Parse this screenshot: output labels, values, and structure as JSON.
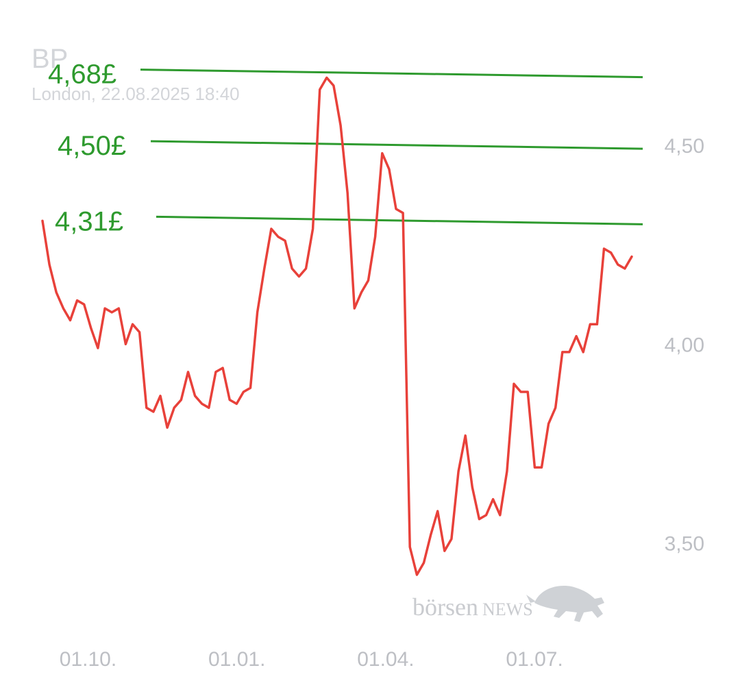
{
  "header": {
    "title": "BP",
    "subtitle": "London, 22.08.2025 18:40"
  },
  "watermark": {
    "text_left": "börsen",
    "text_right": "NEWS",
    "icon": "bull-icon"
  },
  "colors": {
    "price_line": "#e8413a",
    "level_lines": "#2e9a2e",
    "axis_text": "#bdbfc4",
    "title_text": "#d3d5d9"
  },
  "chart_data": {
    "type": "line",
    "title": "BP",
    "subtitle": "London, 22.08.2025 18:40",
    "xlabel": "",
    "ylabel": "",
    "ylim": [
      3.32,
      4.7
    ],
    "yticks": [
      3.5,
      4.0,
      4.5
    ],
    "ytick_labels": [
      "3,50",
      "4,00",
      "4,50"
    ],
    "y_axis_position": "right",
    "xtick_labels": [
      "01.10.",
      "01.01.",
      "01.04.",
      "01.07."
    ],
    "xtick_positions": [
      7.5,
      32,
      56.5,
      81
    ],
    "x_range": [
      0,
      97
    ],
    "grid": false,
    "series": [
      {
        "values": [
          4.31,
          4.2,
          4.13,
          4.09,
          4.06,
          4.11,
          4.1,
          4.04,
          3.99,
          4.09,
          4.08,
          4.09,
          4.0,
          4.05,
          4.03,
          3.84,
          3.83,
          3.87,
          3.79,
          3.84,
          3.86,
          3.93,
          3.87,
          3.85,
          3.84,
          3.93,
          3.94,
          3.86,
          3.85,
          3.88,
          3.89,
          4.08,
          4.19,
          4.29,
          4.27,
          4.26,
          4.19,
          4.17,
          4.19,
          4.29,
          4.64,
          4.67,
          4.65,
          4.55,
          4.38,
          4.09,
          4.13,
          4.16,
          4.27,
          4.48,
          4.44,
          4.34,
          4.33,
          3.49,
          3.42,
          3.45,
          3.52,
          3.58,
          3.48,
          3.51,
          3.68,
          3.77,
          3.64,
          3.56,
          3.57,
          3.61,
          3.57,
          3.68,
          3.9,
          3.88,
          3.88,
          3.69,
          3.69,
          3.8,
          3.84,
          3.98,
          3.98,
          4.02,
          3.98,
          4.05,
          4.05,
          4.24,
          4.23,
          4.2,
          4.19,
          4.22
        ]
      }
    ],
    "levels": [
      {
        "label": "4,68£",
        "value": 4.68
      },
      {
        "label": "4,50£",
        "value": 4.5
      },
      {
        "label": "4,31£",
        "value": 4.31
      }
    ]
  }
}
